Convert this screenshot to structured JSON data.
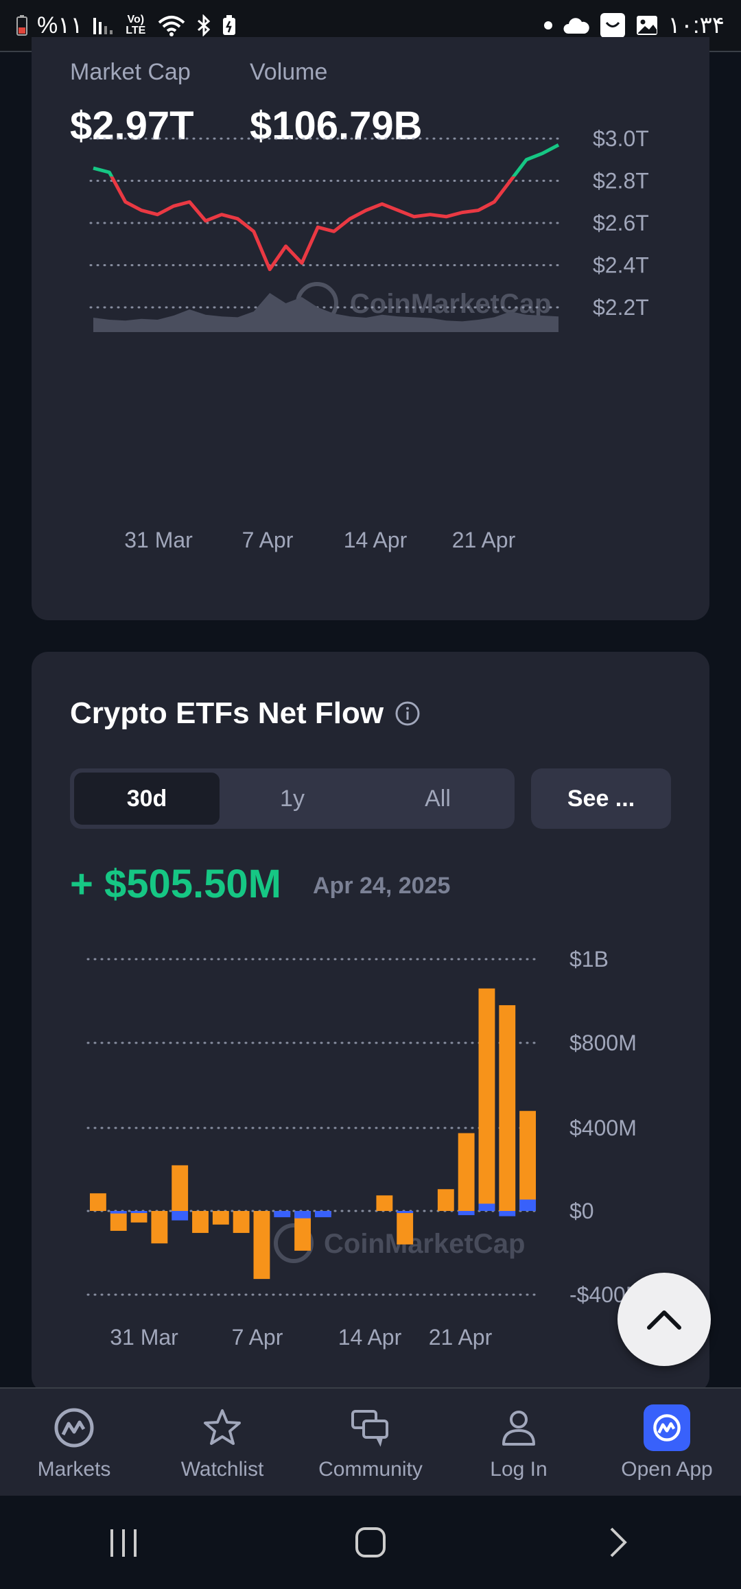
{
  "status_bar": {
    "battery_text": "%۱۱",
    "lte_label": "Vo) LTE",
    "time": "۱۰:۳۴"
  },
  "market": {
    "market_cap_label": "Market Cap",
    "market_cap_value": "$2.97T",
    "volume_label": "Volume",
    "volume_value": "$106.79B",
    "watermark": "CoinMarketCap"
  },
  "chart_data": [
    {
      "type": "line",
      "y_ticks": [
        "$3.0T",
        "$2.8T",
        "$2.6T",
        "$2.4T",
        "$2.2T"
      ],
      "x_ticks": [
        "31 Mar",
        "7 Apr",
        "14 Apr",
        "21 Apr"
      ],
      "ylim": [
        2.2,
        3.0
      ],
      "y_unit": "T",
      "x": [
        "Mar 27",
        "Mar 28",
        "Mar 29",
        "Mar 30",
        "Mar 31",
        "Apr 1",
        "Apr 2",
        "Apr 3",
        "Apr 4",
        "Apr 5",
        "Apr 6",
        "Apr 7",
        "Apr 8",
        "Apr 9",
        "Apr 10",
        "Apr 11",
        "Apr 12",
        "Apr 13",
        "Apr 14",
        "Apr 15",
        "Apr 16",
        "Apr 17",
        "Apr 18",
        "Apr 19",
        "Apr 20",
        "Apr 21",
        "Apr 22",
        "Apr 23",
        "Apr 24",
        "Apr 25"
      ],
      "values": [
        2.86,
        2.84,
        2.7,
        2.66,
        2.64,
        2.68,
        2.7,
        2.61,
        2.64,
        2.62,
        2.56,
        2.38,
        2.49,
        2.41,
        2.58,
        2.56,
        2.62,
        2.66,
        2.69,
        2.66,
        2.63,
        2.64,
        2.63,
        2.65,
        2.66,
        2.7,
        2.8,
        2.9,
        2.93,
        2.97
      ],
      "baseline": 2.82,
      "colors": {
        "above": "#16c784",
        "below": "#ea3943"
      },
      "volume": [
        0.35,
        0.3,
        0.28,
        0.32,
        0.3,
        0.4,
        0.55,
        0.42,
        0.38,
        0.36,
        0.5,
        0.95,
        0.7,
        0.85,
        0.6,
        0.45,
        0.38,
        0.35,
        0.42,
        0.38,
        0.36,
        0.34,
        0.28,
        0.26,
        0.3,
        0.36,
        0.5,
        0.42,
        0.4,
        0.38
      ]
    },
    {
      "type": "bar",
      "title": "Crypto ETFs Net Flow",
      "y_ticks": [
        "$1B",
        "$800M",
        "$400M",
        "$0",
        "-$400M"
      ],
      "x_ticks": [
        "31 Mar",
        "7 Apr",
        "14 Apr",
        "21 Apr"
      ],
      "ylim": [
        -400,
        1200
      ],
      "y_unit": "M",
      "series": [
        {
          "color": "#f7931a",
          "values": [
            85,
            -95,
            -55,
            -155,
            220,
            -105,
            -65,
            -105,
            -325,
            -20,
            -190,
            -20,
            0,
            0,
            75,
            -160,
            0,
            105,
            375,
            930,
            890,
            480
          ]
        },
        {
          "color": "#3861fb",
          "values": [
            0,
            -12,
            -10,
            0,
            -45,
            0,
            0,
            0,
            0,
            -30,
            -35,
            -30,
            0,
            0,
            0,
            -10,
            0,
            0,
            -20,
            35,
            -25,
            55
          ]
        }
      ]
    }
  ],
  "etf": {
    "title": "Crypto ETFs Net Flow",
    "tabs": [
      "30d",
      "1y",
      "All"
    ],
    "see_button": "See ...",
    "flow_value": "+ $505.50M",
    "flow_date": "Apr 24, 2025"
  },
  "bottom_nav": {
    "markets": "Markets",
    "watchlist": "Watchlist",
    "community": "Community",
    "login": "Log In",
    "open_app": "Open App"
  },
  "colors": {
    "background": "#0d121b",
    "card": "#222531",
    "green": "#16c784",
    "red": "#ea3943",
    "orange": "#f7931a",
    "blue": "#3861fb"
  }
}
